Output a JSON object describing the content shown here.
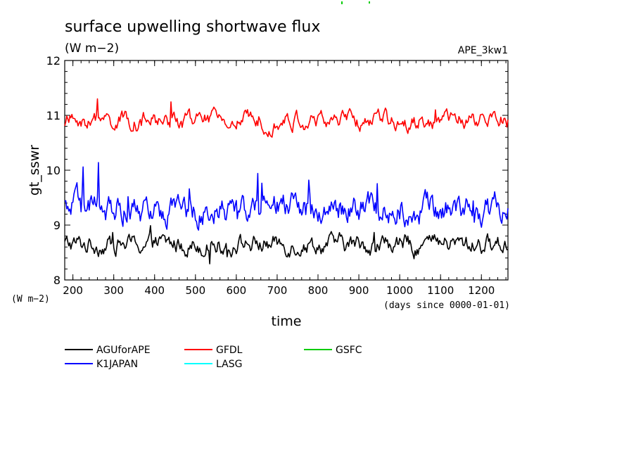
{
  "chart_data": {
    "type": "line",
    "title": "surface upwelling shortwave flux",
    "units": "(W m−2)",
    "tag": "APE_3kw1",
    "ylabel": "gt_sswr",
    "yunits": "(W m−2)",
    "xlabel": "time",
    "xunits": "(days since 0000-01-01)",
    "xlim": [
      180,
      1265
    ],
    "ylim": [
      8,
      12
    ],
    "xticks": [
      200,
      300,
      400,
      500,
      600,
      700,
      800,
      900,
      1000,
      1100,
      1200
    ],
    "yticks": [
      8,
      9,
      10,
      11,
      12
    ],
    "grid": false,
    "legend_position": "bottom",
    "series": [
      {
        "name": "AGUforAPE",
        "color": "#000000",
        "mean": 8.65,
        "amplitude": 0.18,
        "x": [
          180,
          1265
        ]
      },
      {
        "name": "GFDL",
        "color": "#ff0000",
        "mean": 10.9,
        "amplitude": 0.17,
        "x": [
          180,
          1265
        ]
      },
      {
        "name": "GSFC",
        "color": "#00cc00",
        "x": []
      },
      {
        "name": "K1JAPAN",
        "color": "#0000ff",
        "mean": 9.3,
        "amplitude": 0.28,
        "x": [
          180,
          1265
        ]
      },
      {
        "name": "LASG",
        "color": "#00ffff",
        "x": []
      }
    ]
  }
}
